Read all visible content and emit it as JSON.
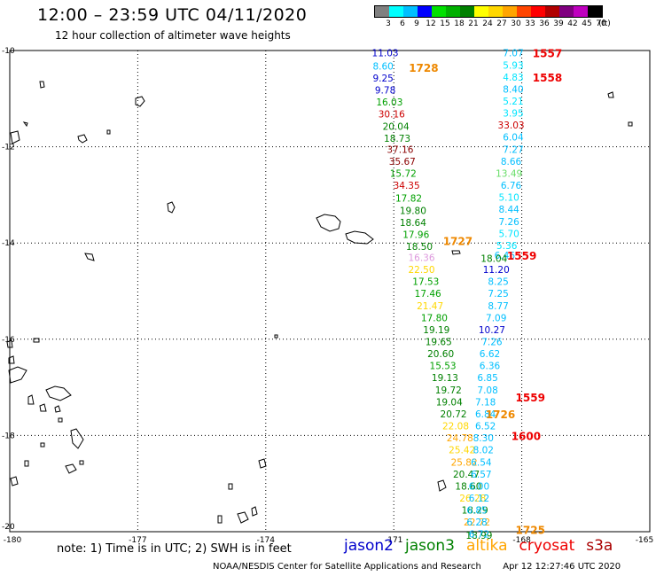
{
  "title": "12:00 – 23:59 UTC 04/11/2020",
  "subtitle": "12 hour collection of altimeter wave heights",
  "colorbar": {
    "labels": [
      "3",
      "6",
      "9",
      "12",
      "15",
      "18",
      "21",
      "24",
      "27",
      "30",
      "33",
      "36",
      "39",
      "42",
      "45",
      "70",
      "(ft)"
    ],
    "colors": [
      "#808080",
      "#00ffff",
      "#00bfff",
      "#0000ff",
      "#00e000",
      "#00b000",
      "#008000",
      "#ffff00",
      "#ffd700",
      "#ffa500",
      "#ff4500",
      "#ff0000",
      "#b00000",
      "#800080",
      "#bf00bf",
      "#000000"
    ]
  },
  "axes": {
    "lat_labels": [
      "-10",
      "-12",
      "-14",
      "-16",
      "-18",
      "-20"
    ],
    "lon_labels": [
      "-180",
      "-177",
      "-174",
      "-171",
      "-168",
      "-165"
    ],
    "lat_range": [
      -20,
      -10
    ],
    "lon_range": [
      -180,
      -165
    ]
  },
  "track_west": [
    {
      "v": "11.03",
      "c": "#0000cc",
      "lat": -10.05,
      "lon": -171.2
    },
    {
      "v": "8.60",
      "c": "#00bfff",
      "lat": -10.32,
      "lon": -171.25
    },
    {
      "v": "9.25",
      "c": "#0000cc",
      "lat": -10.57,
      "lon": -171.25
    },
    {
      "v": "9.78",
      "c": "#0000cc",
      "lat": -10.82,
      "lon": -171.2
    },
    {
      "v": "16.03",
      "c": "#00a000",
      "lat": -11.07,
      "lon": -171.1
    },
    {
      "v": "30.16",
      "c": "#cc0000",
      "lat": -11.32,
      "lon": -171.05
    },
    {
      "v": "20.04",
      "c": "#008000",
      "lat": -11.57,
      "lon": -170.95
    },
    {
      "v": "18.73",
      "c": "#008000",
      "lat": -11.82,
      "lon": -170.92
    },
    {
      "v": "37.16",
      "c": "#8b0000",
      "lat": -12.05,
      "lon": -170.85
    },
    {
      "v": "35.67",
      "c": "#8b0000",
      "lat": -12.3,
      "lon": -170.8
    },
    {
      "v": "15.72",
      "c": "#00a000",
      "lat": -12.55,
      "lon": -170.78
    },
    {
      "v": "34.35",
      "c": "#cc0000",
      "lat": -12.8,
      "lon": -170.7
    },
    {
      "v": "17.82",
      "c": "#00a000",
      "lat": -13.07,
      "lon": -170.65
    },
    {
      "v": "19.80",
      "c": "#008000",
      "lat": -13.32,
      "lon": -170.55
    },
    {
      "v": "18.64",
      "c": "#008000",
      "lat": -13.57,
      "lon": -170.55
    },
    {
      "v": "17.96",
      "c": "#00a000",
      "lat": -13.82,
      "lon": -170.48
    },
    {
      "v": "18.50",
      "c": "#008000",
      "lat": -14.07,
      "lon": -170.4
    },
    {
      "v": "16.36",
      "c": "#dd99dd",
      "lat": -14.3,
      "lon": -170.35
    },
    {
      "v": "22.50",
      "c": "#ffd700",
      "lat": -14.55,
      "lon": -170.35
    },
    {
      "v": "17.53",
      "c": "#00a000",
      "lat": -14.8,
      "lon": -170.25
    },
    {
      "v": "17.46",
      "c": "#00a000",
      "lat": -15.05,
      "lon": -170.2
    },
    {
      "v": "21.47",
      "c": "#ffd700",
      "lat": -15.3,
      "lon": -170.15
    },
    {
      "v": "17.80",
      "c": "#00a000",
      "lat": -15.55,
      "lon": -170.05
    },
    {
      "v": "19.19",
      "c": "#008000",
      "lat": -15.8,
      "lon": -170.0
    },
    {
      "v": "19.65",
      "c": "#008000",
      "lat": -16.05,
      "lon": -169.95
    },
    {
      "v": "20.60",
      "c": "#008000",
      "lat": -16.3,
      "lon": -169.9
    },
    {
      "v": "15.53",
      "c": "#00a000",
      "lat": -16.55,
      "lon": -169.85
    },
    {
      "v": "19.13",
      "c": "#008000",
      "lat": -16.8,
      "lon": -169.8
    },
    {
      "v": "19.72",
      "c": "#008000",
      "lat": -17.05,
      "lon": -169.72
    },
    {
      "v": "19.04",
      "c": "#008000",
      "lat": -17.3,
      "lon": -169.7
    },
    {
      "v": "20.72",
      "c": "#008000",
      "lat": -17.55,
      "lon": -169.6
    },
    {
      "v": "22.08",
      "c": "#ffd700",
      "lat": -17.8,
      "lon": -169.55
    },
    {
      "v": "24.78",
      "c": "#ffa500",
      "lat": -18.05,
      "lon": -169.45
    },
    {
      "v": "25.42",
      "c": "#ffd700",
      "lat": -18.3,
      "lon": -169.4
    },
    {
      "v": "25.82",
      "c": "#ffa500",
      "lat": -18.55,
      "lon": -169.35
    },
    {
      "v": "20.47",
      "c": "#008000",
      "lat": -18.8,
      "lon": -169.3
    },
    {
      "v": "18.60",
      "c": "#008000",
      "lat": -19.05,
      "lon": -169.25
    },
    {
      "v": "26.28",
      "c": "#ffd700",
      "lat": -19.3,
      "lon": -169.15
    },
    {
      "v": "18.29",
      "c": "#008000",
      "lat": -19.55,
      "lon": -169.1
    },
    {
      "v": "22.72",
      "c": "#ffa500",
      "lat": -19.8,
      "lon": -169.05
    },
    {
      "v": "18.99",
      "c": "#008000",
      "lat": -20.07,
      "lon": -169.0
    }
  ],
  "track_east": [
    {
      "v": "7.07",
      "c": "#00bfff",
      "lat": -10.05,
      "lon": -168.2
    },
    {
      "v": "5.93",
      "c": "#00e5ff",
      "lat": -10.3,
      "lon": -168.2
    },
    {
      "v": "4.83",
      "c": "#00e5ff",
      "lat": -10.55,
      "lon": -168.2
    },
    {
      "v": "8.40",
      "c": "#00bfff",
      "lat": -10.8,
      "lon": -168.2
    },
    {
      "v": "5.21",
      "c": "#00e5ff",
      "lat": -11.05,
      "lon": -168.2
    },
    {
      "v": "3.95",
      "c": "#00e5ff",
      "lat": -11.3,
      "lon": -168.2
    },
    {
      "v": "33.03",
      "c": "#cc0000",
      "lat": -11.55,
      "lon": -168.25
    },
    {
      "v": "6.04",
      "c": "#00bfff",
      "lat": -11.8,
      "lon": -168.2
    },
    {
      "v": "7.27",
      "c": "#00bfff",
      "lat": -12.05,
      "lon": -168.2
    },
    {
      "v": "8.66",
      "c": "#00bfff",
      "lat": -12.3,
      "lon": -168.25
    },
    {
      "v": "13.49",
      "c": "#66dd66",
      "lat": -12.55,
      "lon": -168.3
    },
    {
      "v": "6.76",
      "c": "#00bfff",
      "lat": -12.8,
      "lon": -168.25
    },
    {
      "v": "5.10",
      "c": "#00e5ff",
      "lat": -13.05,
      "lon": -168.3
    },
    {
      "v": "8.44",
      "c": "#00bfff",
      "lat": -13.3,
      "lon": -168.3
    },
    {
      "v": "7.26",
      "c": "#00bfff",
      "lat": -13.55,
      "lon": -168.3
    },
    {
      "v": "5.70",
      "c": "#00e5ff",
      "lat": -13.8,
      "lon": -168.3
    },
    {
      "v": "5.36",
      "c": "#00e5ff",
      "lat": -14.05,
      "lon": -168.35
    },
    {
      "v": "6.46",
      "c": "#00bfff",
      "lat": -14.25,
      "lon": -168.4
    },
    {
      "v": "18.04",
      "c": "#008000",
      "lat": -14.32,
      "lon": -168.65
    },
    {
      "v": "11.20",
      "c": "#0000cc",
      "lat": -14.55,
      "lon": -168.6
    },
    {
      "v": "8.25",
      "c": "#00bfff",
      "lat": -14.8,
      "lon": -168.55
    },
    {
      "v": "7.25",
      "c": "#00bfff",
      "lat": -15.05,
      "lon": -168.55
    },
    {
      "v": "8.77",
      "c": "#00bfff",
      "lat": -15.3,
      "lon": -168.55
    },
    {
      "v": "7.09",
      "c": "#00bfff",
      "lat": -15.55,
      "lon": -168.6
    },
    {
      "v": "10.27",
      "c": "#0000cc",
      "lat": -15.8,
      "lon": -168.7
    },
    {
      "v": "7.26",
      "c": "#00bfff",
      "lat": -16.05,
      "lon": -168.7
    },
    {
      "v": "6.62",
      "c": "#00bfff",
      "lat": -16.3,
      "lon": -168.75
    },
    {
      "v": "6.36",
      "c": "#00bfff",
      "lat": -16.55,
      "lon": -168.75
    },
    {
      "v": "6.85",
      "c": "#00bfff",
      "lat": -16.8,
      "lon": -168.8
    },
    {
      "v": "7.08",
      "c": "#00bfff",
      "lat": -17.05,
      "lon": -168.8
    },
    {
      "v": "7.18",
      "c": "#00bfff",
      "lat": -17.3,
      "lon": -168.85
    },
    {
      "v": "6.84",
      "c": "#00bfff",
      "lat": -17.55,
      "lon": -168.85
    },
    {
      "v": "6.52",
      "c": "#00bfff",
      "lat": -17.8,
      "lon": -168.85
    },
    {
      "v": "8.30",
      "c": "#00bfff",
      "lat": -18.05,
      "lon": -168.9
    },
    {
      "v": "8.02",
      "c": "#00bfff",
      "lat": -18.3,
      "lon": -168.9
    },
    {
      "v": "6.54",
      "c": "#00bfff",
      "lat": -18.55,
      "lon": -168.95
    },
    {
      "v": "6.57",
      "c": "#00bfff",
      "lat": -18.8,
      "lon": -168.95
    },
    {
      "v": "6.00",
      "c": "#00bfff",
      "lat": -19.05,
      "lon": -169.0
    },
    {
      "v": "6.12",
      "c": "#00bfff",
      "lat": -19.3,
      "lon": -169.0
    },
    {
      "v": "6.85",
      "c": "#00bfff",
      "lat": -19.55,
      "lon": -169.05
    },
    {
      "v": "6.28",
      "c": "#00bfff",
      "lat": -19.8,
      "lon": -169.05
    },
    {
      "v": "6.72",
      "c": "#00bfff",
      "lat": -20.05,
      "lon": -169.0
    }
  ],
  "time_labels": [
    {
      "t": "1557",
      "c": "#ee0000",
      "lat": -10.05,
      "lon": -167.4
    },
    {
      "t": "1728",
      "c": "#ee8800",
      "lat": -10.35,
      "lon": -170.3
    },
    {
      "t": "1558",
      "c": "#ee0000",
      "lat": -10.55,
      "lon": -167.4
    },
    {
      "t": "1727",
      "c": "#ee8800",
      "lat": -13.95,
      "lon": -169.5
    },
    {
      "t": "1559",
      "c": "#ee0000",
      "lat": -14.25,
      "lon": -168.0
    },
    {
      "t": "1559",
      "c": "#ee0000",
      "lat": -17.2,
      "lon": -167.8
    },
    {
      "t": "1726",
      "c": "#ee8800",
      "lat": -17.55,
      "lon": -168.5
    },
    {
      "t": "1600",
      "c": "#ee0000",
      "lat": -18.0,
      "lon": -167.9
    },
    {
      "t": "1725",
      "c": "#ee8800",
      "lat": -19.95,
      "lon": -167.8
    }
  ],
  "note": "note: 1) Time is in UTC; 2) SWH is in feet",
  "legend": [
    {
      "name": "jason2",
      "color": "#0000cc"
    },
    {
      "name": "jason3",
      "color": "#008000"
    },
    {
      "name": "altika",
      "color": "#ffa500"
    },
    {
      "name": "cryosat",
      "color": "#ee0000"
    },
    {
      "name": "s3a",
      "color": "#aa0000"
    }
  ],
  "footer": {
    "org": "NOAA/NESDIS Center for Satellite Applications and Research",
    "timestamp": "Apr 12 12:27:46 UTC 2020"
  }
}
